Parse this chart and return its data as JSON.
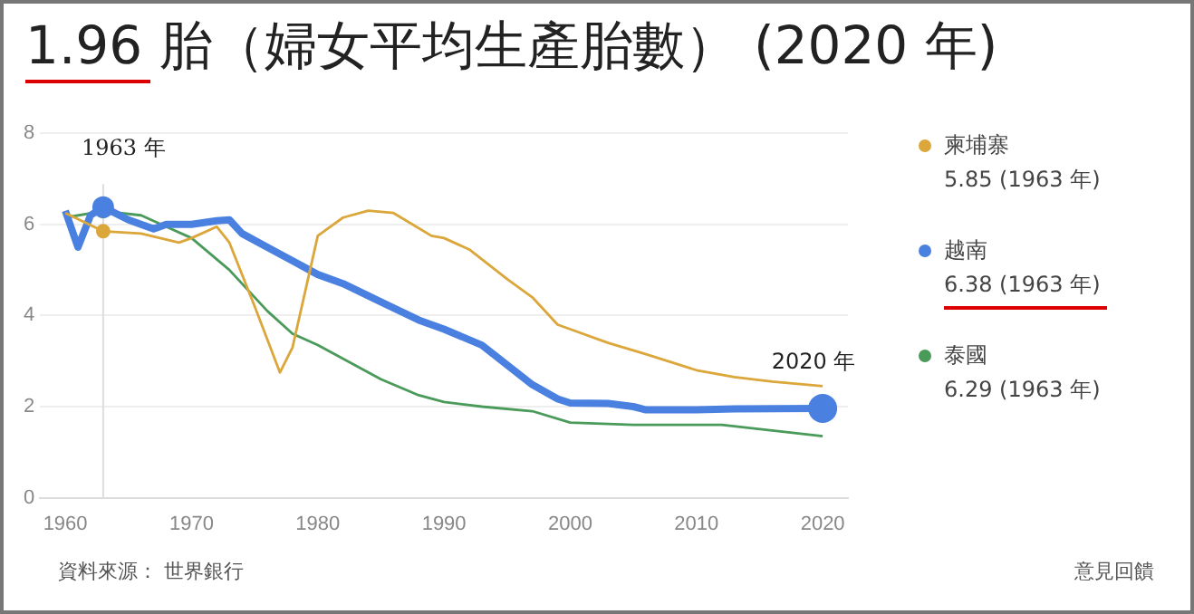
{
  "chart_data": {
    "type": "line",
    "title": "1.96 胎（婦女平均生產胎數） (2020 年)",
    "xlim": [
      1958,
      2022
    ],
    "xticks": [
      1960,
      1970,
      1980,
      1990,
      2000,
      2010,
      2020
    ],
    "ylim": [
      0,
      8
    ],
    "yticks": [
      0,
      2,
      4,
      6,
      8
    ],
    "grid": "y",
    "legend": "right",
    "series": [
      {
        "name": "柬埔寨",
        "color": "#dba63a",
        "x": [
          1960,
          1963,
          1966,
          1969,
          1970,
          1972,
          1973,
          1975,
          1977,
          1978,
          1980,
          1982,
          1984,
          1986,
          1989,
          1990,
          1992,
          1995,
          1997,
          1999,
          2000,
          2003,
          2006,
          2010,
          2013,
          2016,
          2020
        ],
        "values": [
          6.25,
          5.85,
          5.8,
          5.6,
          5.7,
          5.95,
          5.6,
          4.2,
          2.75,
          3.3,
          5.75,
          6.15,
          6.3,
          6.25,
          5.75,
          5.7,
          5.45,
          4.8,
          4.4,
          3.8,
          3.7,
          3.4,
          3.15,
          2.8,
          2.65,
          2.55,
          2.45
        ]
      },
      {
        "name": "越南",
        "color": "#4a80e0",
        "x": [
          1960,
          1961,
          1962,
          1963,
          1965,
          1967,
          1968,
          1970,
          1972,
          1973,
          1974,
          1976,
          1978,
          1980,
          1982,
          1985,
          1988,
          1990,
          1993,
          1997,
          1999,
          2000,
          2003,
          2005,
          2006,
          2010,
          2013,
          2020
        ],
        "values": [
          6.3,
          5.5,
          6.2,
          6.38,
          6.1,
          5.9,
          6.0,
          6.0,
          6.08,
          6.1,
          5.8,
          5.5,
          5.2,
          4.9,
          4.7,
          4.3,
          3.9,
          3.7,
          3.35,
          2.48,
          2.17,
          2.08,
          2.07,
          2.0,
          1.93,
          1.93,
          1.95,
          1.96
        ]
      },
      {
        "name": "泰國",
        "color": "#4a9a5a",
        "x": [
          1960,
          1963,
          1966,
          1970,
          1973,
          1976,
          1978,
          1980,
          1985,
          1988,
          1990,
          1993,
          1997,
          2000,
          2005,
          2010,
          2012,
          2020
        ],
        "values": [
          6.15,
          6.29,
          6.2,
          5.7,
          5.0,
          4.1,
          3.6,
          3.35,
          2.6,
          2.25,
          2.1,
          2.0,
          1.9,
          1.65,
          1.6,
          1.6,
          1.6,
          1.35
        ]
      }
    ],
    "ref_lines": [
      {
        "axis": "x",
        "value": 1963,
        "label": "1963 年",
        "color": "#dddddd"
      }
    ],
    "annotations": [
      "5.85 (1963 年)",
      "6.38 (1963 年)",
      "6.29 (1963 年)",
      {
        "text": "2020 年",
        "x": 2020,
        "y": 1.96
      },
      "資料來源： 世界銀行",
      "意見回饋"
    ]
  }
}
